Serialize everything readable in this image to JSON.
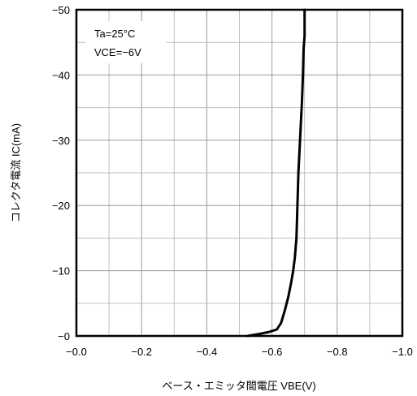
{
  "chart_data": {
    "type": "line",
    "xlabel": "ベース・エミッタ間電圧 VBE(V)",
    "ylabel": "コレクタ電流 IC(mA)",
    "xlim": [
      0.0,
      -1.0
    ],
    "ylim": [
      0,
      -50
    ],
    "x_ticks": [
      0.0,
      -0.2,
      -0.4,
      -0.6,
      -0.8,
      -1.0
    ],
    "x_tick_labels": [
      "−0.0",
      "−0.2",
      "−0.4",
      "−0.6",
      "−0.8",
      "−1.0"
    ],
    "y_ticks": [
      0,
      -10,
      -20,
      -30,
      -40,
      -50
    ],
    "y_tick_labels": [
      "−0",
      "−10",
      "−20",
      "−30",
      "−40",
      "−50"
    ],
    "grid": true,
    "minor_grid": true,
    "annotations": [
      "Ta=25°C",
      "VCE=−6V"
    ],
    "series": [
      {
        "x": [
          -0.525,
          -0.56,
          -0.59,
          -0.615,
          -0.628,
          -0.64,
          -0.65,
          -0.658,
          -0.665,
          -0.67,
          -0.675,
          -0.678,
          -0.681,
          -0.684,
          -0.686,
          -0.689,
          -0.692,
          -0.695,
          -0.697,
          -0.7,
          -0.7
        ],
        "y": [
          0,
          -0.3,
          -0.6,
          -1.0,
          -2.0,
          -4.0,
          -6.0,
          -8.0,
          -10.0,
          -12.0,
          -15.0,
          -20.0,
          -25.0,
          -28.0,
          -30.0,
          -33.0,
          -36.0,
          -40.0,
          -44.0,
          -46.0,
          -50.0
        ]
      }
    ],
    "colors": {
      "line": "#000000",
      "grid": "#bfbfbf",
      "frame": "#000000"
    }
  }
}
